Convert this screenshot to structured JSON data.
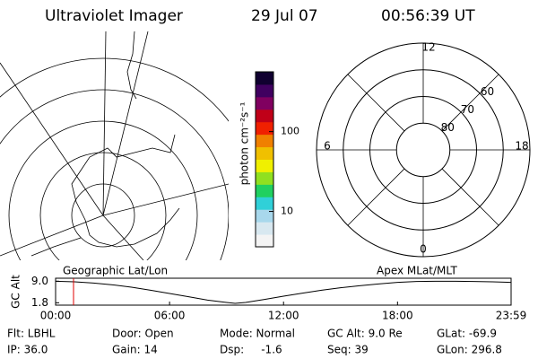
{
  "header": {
    "instrument": "Ultraviolet Imager",
    "date": "29 Jul 07",
    "time": "00:56:39 UT"
  },
  "colorbar": {
    "label": "photon cm⁻²s⁻¹",
    "log": true,
    "clim": [
      3.6,
      562
    ],
    "ticks": [
      10,
      100
    ],
    "colors": [
      "#f4f4f4",
      "#d8e8f0",
      "#a8d8ec",
      "#30d0d8",
      "#20d060",
      "#90e020",
      "#f0f000",
      "#f0c000",
      "#f08000",
      "#f02000",
      "#c00018",
      "#800060",
      "#400060",
      "#100030"
    ]
  },
  "polar": {
    "mlt_labels": [
      12,
      18,
      0,
      6
    ],
    "lat_circles": [
      80,
      70,
      60
    ],
    "outer_lat": 50
  },
  "map_labels": {
    "left": "Geographic Lat/Lon",
    "right": "Apex MLat/MLT"
  },
  "chart_data": {
    "type": "line",
    "ylabel": "GC Alt",
    "x": [
      0,
      1,
      2,
      3,
      4,
      5,
      6,
      7,
      8,
      9,
      9.45,
      10,
      11,
      12,
      13,
      14,
      15,
      16,
      17,
      18,
      19,
      20,
      21,
      22,
      23,
      23.98
    ],
    "series": [
      {
        "name": "GC Alt",
        "color": "#000000",
        "values": [
          9.0,
          8.8,
          8.4,
          7.8,
          7.0,
          6.0,
          4.9,
          3.8,
          2.7,
          1.9,
          1.6,
          1.9,
          2.9,
          4.0,
          5.0,
          6.0,
          6.8,
          7.5,
          8.1,
          8.6,
          8.9,
          9.0,
          9.0,
          8.9,
          8.8,
          8.6
        ]
      }
    ],
    "xlim": [
      0,
      23.98
    ],
    "ylim": [
      1,
      10
    ],
    "xticks": [
      {
        "value": 0,
        "label": "00:00"
      },
      {
        "value": 6,
        "label": "06:00"
      },
      {
        "value": 12,
        "label": "12:00"
      },
      {
        "value": 18,
        "label": "18:00"
      },
      {
        "value": 23.98,
        "label": "23:59"
      }
    ],
    "yticks": [
      {
        "value": 9,
        "label": "9.0"
      },
      1.8
    ],
    "marker": 0.944,
    "marker_color": "#e00000"
  },
  "status": {
    "rows": [
      [
        "Flt: LBHL",
        "Door: Open",
        "Mode: Normal",
        "GC Alt: 9.0 Re",
        "GLat: -69.9"
      ],
      [
        "IP: 36.0",
        "Gain: 14",
        "Dsp:     -1.6",
        "Seq: 39",
        "GLon: 296.8"
      ]
    ]
  }
}
